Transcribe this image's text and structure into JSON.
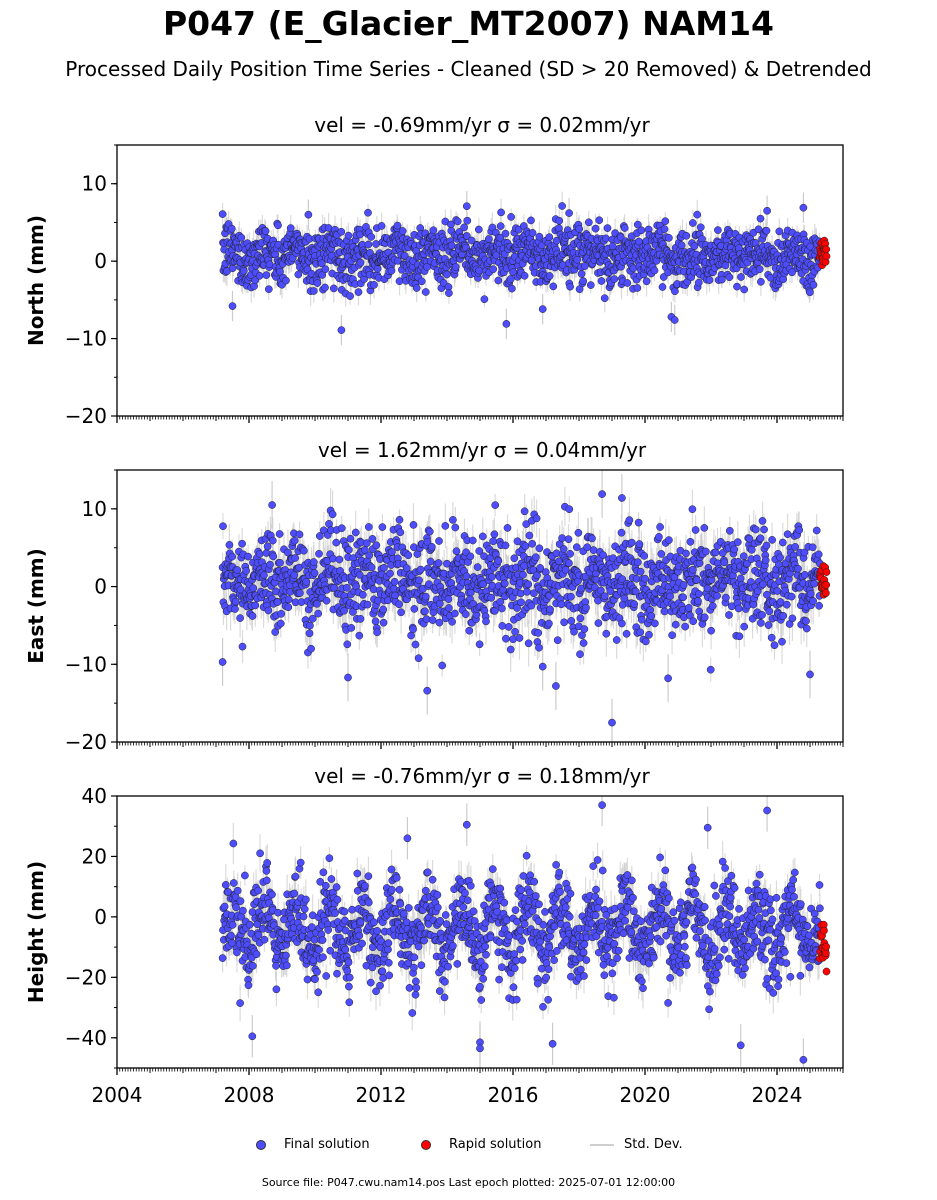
{
  "title": "P047 (E_Glacier_MT2007) NAM14",
  "subtitle": "Processed Daily Position Time Series - Cleaned (SD > 20 Removed) & Detrended",
  "footer": "Source file: P047.cwu.nam14.pos  Last epoch plotted: 2025-07-01 12:00:00",
  "legend": {
    "final": "Final solution",
    "rapid": "Rapid solution",
    "std": "Std. Dev."
  },
  "colors": {
    "final": "#4d4dff",
    "rapid": "#ff0000",
    "std": "#cccccc",
    "marker_edge": "#222222"
  },
  "chart_data": [
    {
      "type": "scatter",
      "title": "vel = -0.69mm/yr   σ = 0.02mm/yr",
      "ylabel": "North (mm)",
      "xlim": [
        2004,
        2026
      ],
      "ylim": [
        -20,
        15
      ],
      "yticks": [
        -20,
        -10,
        0,
        10
      ],
      "xticks": [
        2004,
        2008,
        2012,
        2016,
        2020,
        2024
      ],
      "show_xtick_labels": false,
      "data_start": 2007.2,
      "data_end": 2025.5,
      "rapid_start": 2025.3,
      "series": [
        {
          "name": "Final solution",
          "mean": 0.8,
          "scatter_sd": 1.9,
          "seasonal_amp": 0.8,
          "err_sd": 1.4
        },
        {
          "name": "Rapid solution",
          "mean": 1.2,
          "scatter_sd": 0.9,
          "err_sd": 0.0
        }
      ],
      "outliers": [
        [
          2007.5,
          -5.8
        ],
        [
          2010.8,
          -8.9
        ],
        [
          2015.8,
          -8.1
        ],
        [
          2016.9,
          -6.2
        ],
        [
          2020.8,
          -7.2
        ],
        [
          2020.9,
          -7.6
        ],
        [
          2014.6,
          7.1
        ],
        [
          2024.8,
          6.9
        ],
        [
          2017.7,
          6.2
        ],
        [
          2023.7,
          6.5
        ],
        [
          2009.8,
          6.0
        ]
      ]
    },
    {
      "type": "scatter",
      "title": "vel = 1.62mm/yr   σ = 0.04mm/yr",
      "ylabel": "East (mm)",
      "xlim": [
        2004,
        2026
      ],
      "ylim": [
        -20,
        15
      ],
      "yticks": [
        -20,
        -10,
        0,
        10
      ],
      "xticks": [
        2004,
        2008,
        2012,
        2016,
        2020,
        2024
      ],
      "show_xtick_labels": false,
      "data_start": 2007.2,
      "data_end": 2025.5,
      "rapid_start": 2025.3,
      "series": [
        {
          "name": "Final solution",
          "mean": 0.8,
          "scatter_sd": 3.2,
          "seasonal_amp": 1.5,
          "err_sd": 2.2
        },
        {
          "name": "Rapid solution",
          "mean": 1.0,
          "scatter_sd": 1.2,
          "err_sd": 0.0
        }
      ],
      "outliers": [
        [
          2007.2,
          -9.7
        ],
        [
          2008.7,
          10.5
        ],
        [
          2011.0,
          -11.7
        ],
        [
          2013.4,
          -13.4
        ],
        [
          2017.3,
          -12.8
        ],
        [
          2018.7,
          11.9
        ],
        [
          2019.0,
          -17.5
        ],
        [
          2019.3,
          11.4
        ],
        [
          2020.7,
          -11.8
        ],
        [
          2025.0,
          -11.3
        ],
        [
          2016.9,
          -10.3
        ]
      ]
    },
    {
      "type": "scatter",
      "title": "vel = -0.76mm/yr   σ = 0.18mm/yr",
      "ylabel": "Height (mm)",
      "xlim": [
        2004,
        2026
      ],
      "ylim": [
        -50,
        40
      ],
      "yticks": [
        -40,
        -20,
        0,
        20,
        40
      ],
      "xticks": [
        2004,
        2008,
        2012,
        2016,
        2020,
        2024
      ],
      "show_xtick_labels": true,
      "data_start": 2007.2,
      "data_end": 2025.5,
      "rapid_start": 2025.3,
      "series": [
        {
          "name": "Final solution",
          "mean": -4.5,
          "scatter_sd": 7.0,
          "seasonal_amp": 8.0,
          "err_sd": 5.0
        },
        {
          "name": "Rapid solution",
          "mean": -9.0,
          "scatter_sd": 4.5,
          "err_sd": 0.0
        }
      ],
      "outliers": [
        [
          2008.1,
          -39.5
        ],
        [
          2015.0,
          -41.5
        ],
        [
          2015.0,
          -43.5
        ],
        [
          2017.2,
          -42.0
        ],
        [
          2018.7,
          37.0
        ],
        [
          2023.7,
          35.2
        ],
        [
          2024.8,
          -47.3
        ],
        [
          2022.9,
          -42.5
        ],
        [
          2014.6,
          30.5
        ],
        [
          2012.8,
          26.0
        ],
        [
          2021.9,
          29.5
        ]
      ]
    }
  ]
}
